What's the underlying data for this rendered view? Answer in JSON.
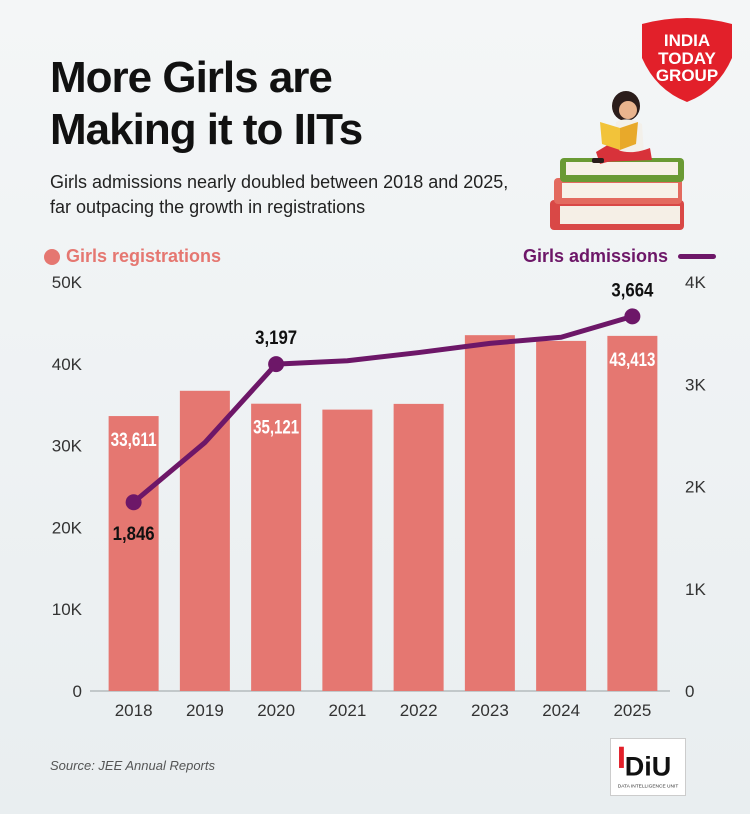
{
  "header": {
    "title_line1": "More Girls are",
    "title_line2": "Making it to IITs",
    "subtitle": "Girls admissions nearly doubled between 2018 and 2025, far outpacing the growth in registrations"
  },
  "brand": {
    "logo_line1": "INDIA",
    "logo_line2": "TODAY",
    "logo_line3": "GROUP",
    "diu_letters": "DiU",
    "diu_caption": "DATA INTELLIGENCE UNIT"
  },
  "source": "Source: JEE Annual Reports",
  "colors": {
    "bar": "#e57771",
    "line": "#6d1768",
    "logo": "#e2202a"
  },
  "chart_data": {
    "type": "bar",
    "categories": [
      "2018",
      "2019",
      "2020",
      "2021",
      "2022",
      "2023",
      "2024",
      "2025"
    ],
    "series": [
      {
        "name": "Girls registrations",
        "type": "bar",
        "axis": "left",
        "values": [
          33611,
          36700,
          35121,
          34400,
          35100,
          43500,
          42800,
          43413
        ],
        "labels": [
          "33,611",
          "",
          "35,121",
          "",
          "",
          "",
          "",
          "43,413"
        ]
      },
      {
        "name": "Girls admissions",
        "type": "line",
        "axis": "right",
        "values": [
          1846,
          2430,
          3197,
          3230,
          3310,
          3400,
          3460,
          3664
        ],
        "labels": [
          "1,846",
          "",
          "3,197",
          "",
          "",
          "",
          "",
          "3,664"
        ]
      }
    ],
    "left_axis": {
      "ylim": [
        0,
        50000
      ],
      "ticks": [
        "0",
        "10K",
        "20K",
        "30K",
        "40K",
        "50K"
      ]
    },
    "right_axis": {
      "ylim": [
        0,
        4000
      ],
      "ticks": [
        "0",
        "1K",
        "2K",
        "3K",
        "4K"
      ]
    },
    "grid": false,
    "legend": [
      "top-left",
      "top-right"
    ]
  }
}
